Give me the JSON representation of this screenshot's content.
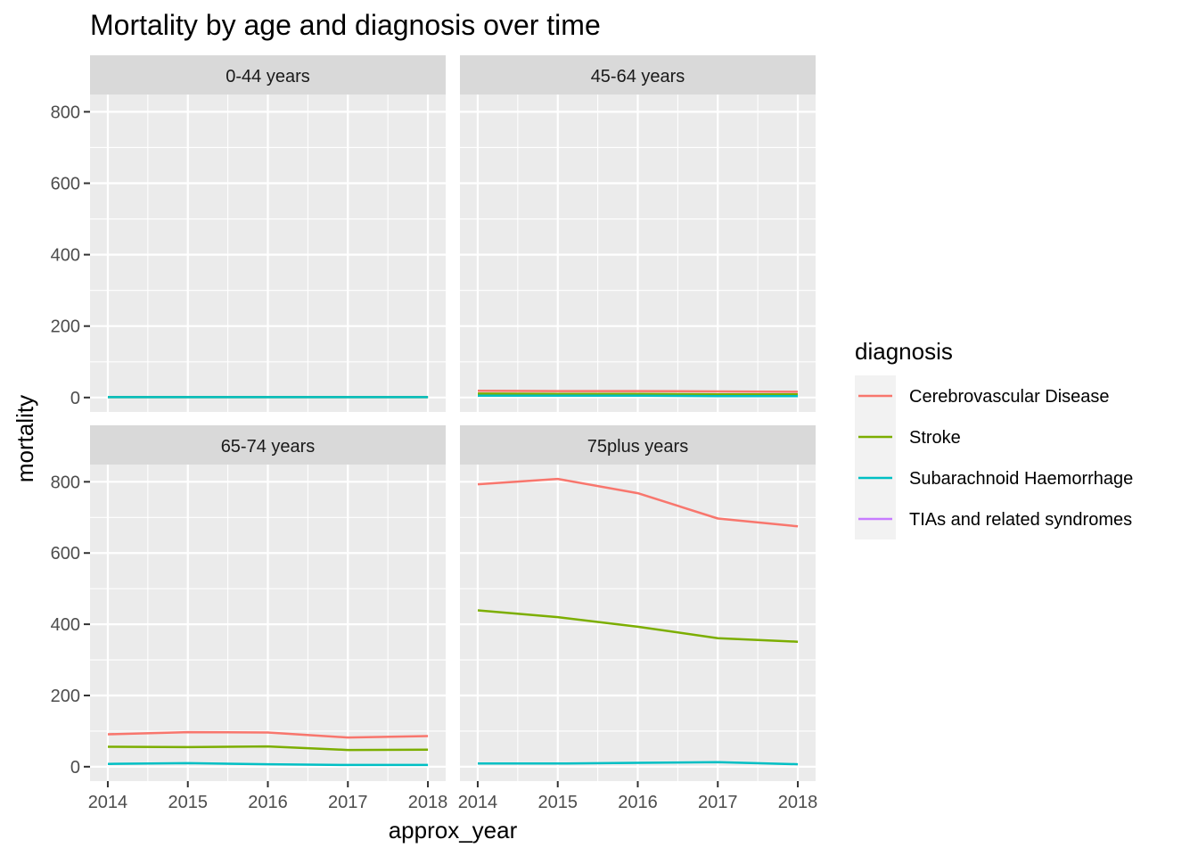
{
  "chart_data": {
    "type": "line",
    "title": "Mortality by age and diagnosis over time",
    "xlabel": "approx_year",
    "ylabel": "mortality",
    "x": [
      2014,
      2015,
      2016,
      2017,
      2018
    ],
    "xlim": [
      2014,
      2018
    ],
    "ylim": [
      0,
      800
    ],
    "yticks": [
      0,
      200,
      400,
      600,
      800
    ],
    "grid": true,
    "legend_position": "right",
    "legend": {
      "title": "diagnosis",
      "entries": [
        {
          "name": "Cerebrovascular Disease",
          "color": "#F8766D"
        },
        {
          "name": "Stroke",
          "color": "#7CAE00"
        },
        {
          "name": "Subarachnoid Haemorrhage",
          "color": "#00BFC4"
        },
        {
          "name": "TIAs and related syndromes",
          "color": "#C77CFF"
        }
      ]
    },
    "panels": [
      {
        "label": "0-44 years",
        "series": [
          {
            "name": "Cerebrovascular Disease",
            "values": [
              1,
              1,
              1,
              1,
              1
            ]
          },
          {
            "name": "Stroke",
            "values": [
              1,
              1,
              1,
              1,
              1
            ]
          },
          {
            "name": "Subarachnoid Haemorrhage",
            "values": [
              1,
              1,
              1,
              1,
              1
            ]
          }
        ]
      },
      {
        "label": "45-64 years",
        "series": [
          {
            "name": "Cerebrovascular Disease",
            "values": [
              19,
              18,
              18,
              17,
              16
            ]
          },
          {
            "name": "Stroke",
            "values": [
              11,
              10,
              10,
              9,
              9
            ]
          },
          {
            "name": "Subarachnoid Haemorrhage",
            "values": [
              5,
              5,
              5,
              4,
              4
            ]
          }
        ]
      },
      {
        "label": "65-74 years",
        "series": [
          {
            "name": "Cerebrovascular Disease",
            "values": [
              91,
              97,
              96,
              82,
              86
            ]
          },
          {
            "name": "Stroke",
            "values": [
              56,
              55,
              57,
              47,
              48
            ]
          },
          {
            "name": "Subarachnoid Haemorrhage",
            "values": [
              8,
              10,
              7,
              5,
              5
            ]
          }
        ]
      },
      {
        "label": "75plus years",
        "series": [
          {
            "name": "Cerebrovascular Disease",
            "values": [
              793,
              808,
              768,
              697,
              675
            ]
          },
          {
            "name": "Stroke",
            "values": [
              439,
              420,
              393,
              361,
              351
            ]
          },
          {
            "name": "Subarachnoid Haemorrhage",
            "values": [
              9,
              9,
              11,
              13,
              7
            ]
          }
        ]
      }
    ]
  }
}
